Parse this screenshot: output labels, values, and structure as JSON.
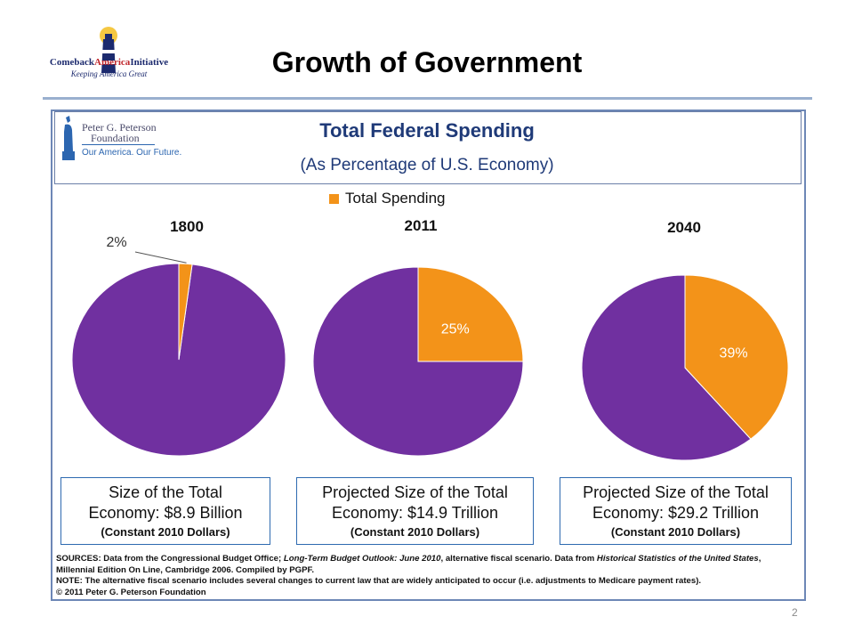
{
  "slide": {
    "title": "Growth of Government",
    "page_number": "2",
    "logo": {
      "name_part1": "Comeback",
      "name_part2": "America",
      "name_part3": "Initiative",
      "tagline": "Keeping America Great"
    }
  },
  "pgpf_logo": {
    "line1": "Peter G. Peterson",
    "line2": "Foundation",
    "line3": "Our America. Our Future."
  },
  "chart_data": {
    "type": "pie",
    "title": "Total Federal Spending",
    "subtitle": "(As Percentage of U.S. Economy)",
    "legend": [
      {
        "name": "Total Spending",
        "color": "#f39319"
      }
    ],
    "colors": {
      "spending": "#f39319",
      "rest": "#7030a0"
    },
    "pies": [
      {
        "label": "1800",
        "value": 2,
        "value_label": "2%",
        "box_line1": "Size of the Total",
        "box_line2": "Economy: $8.9 Billion",
        "box_line3": "(Constant 2010 Dollars)"
      },
      {
        "label": "2011",
        "value": 25,
        "value_label": "25%",
        "box_line1": "Projected Size of the Total",
        "box_line2": "Economy: $14.9 Trillion",
        "box_line3": "(Constant 2010 Dollars)"
      },
      {
        "label": "2040",
        "value": 39,
        "value_label": "39%",
        "box_line1": "Projected Size of the Total",
        "box_line2": "Economy: $29.2 Trillion",
        "box_line3": "(Constant 2010 Dollars)"
      }
    ],
    "notes": {
      "sources_prefix": "SOURCES: Data from the Congressional Budget Office; ",
      "sources_italic1": "Long-Term Budget Outlook: June 2010",
      "sources_mid": ", alternative fiscal scenario. Data from ",
      "sources_italic2": "Historical Statistics of the United States",
      "sources_suffix": ", Millennial Edition On Line, Cambridge 2006. Compiled by PGPF.",
      "note": "NOTE: The alternative fiscal scenario includes several changes to current law that are widely anticipated to occur (i.e. adjustments to Medicare payment rates).",
      "copyright": "© 2011 Peter G. Peterson Foundation"
    }
  }
}
